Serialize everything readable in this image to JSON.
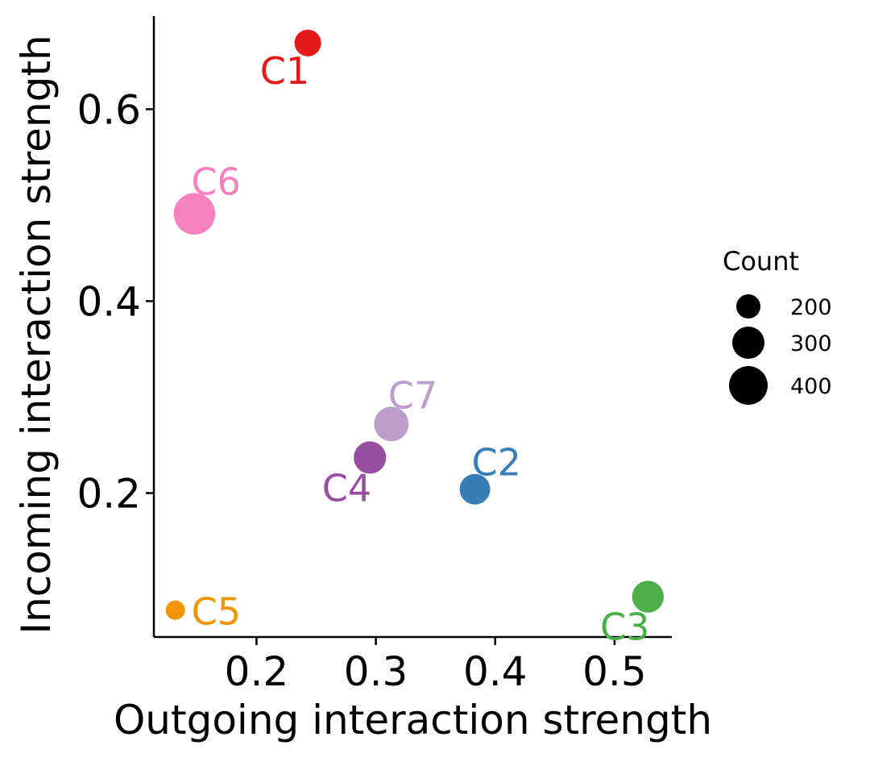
{
  "chart_data": {
    "type": "scatter",
    "title": "",
    "xlabel": "Outgoing interaction strength",
    "ylabel": "Incoming interaction strength",
    "xlim": [
      0.114,
      0.548
    ],
    "ylim": [
      0.05,
      0.697
    ],
    "xticks": [
      0.2,
      0.3,
      0.4,
      0.5
    ],
    "xtick_labels": [
      "0.2",
      "0.3",
      "0.4",
      "0.5"
    ],
    "yticks": [
      0.2,
      0.4,
      0.6
    ],
    "ytick_labels": [
      "0.2",
      "0.4",
      "0.6"
    ],
    "grid": false,
    "points": [
      {
        "name": "C1",
        "x": 0.243,
        "y": 0.669,
        "count": 190,
        "color": "#E41A1C",
        "label_pos": "bottom-left"
      },
      {
        "name": "C2",
        "x": 0.383,
        "y": 0.204,
        "count": 250,
        "color": "#377EB8",
        "label_pos": "top-right"
      },
      {
        "name": "C3",
        "x": 0.528,
        "y": 0.092,
        "count": 270,
        "color": "#4DAF4A",
        "label_pos": "bottom-left"
      },
      {
        "name": "C4",
        "x": 0.295,
        "y": 0.237,
        "count": 280,
        "color": "#984EA3",
        "label_pos": "bottom-left"
      },
      {
        "name": "C5",
        "x": 0.132,
        "y": 0.078,
        "count": 100,
        "color": "#F29403",
        "label_pos": "right"
      },
      {
        "name": "C6",
        "x": 0.148,
        "y": 0.491,
        "count": 460,
        "color": "#F781BF",
        "label_pos": "top-right"
      },
      {
        "name": "C7",
        "x": 0.313,
        "y": 0.272,
        "count": 320,
        "color": "#BC9DCC",
        "label_pos": "top-right"
      }
    ],
    "legend": {
      "title": "Count",
      "placement": "right",
      "entries": [
        {
          "label": "200",
          "value": 200
        },
        {
          "label": "300",
          "value": 300
        },
        {
          "label": "400",
          "value": 400
        }
      ]
    }
  }
}
